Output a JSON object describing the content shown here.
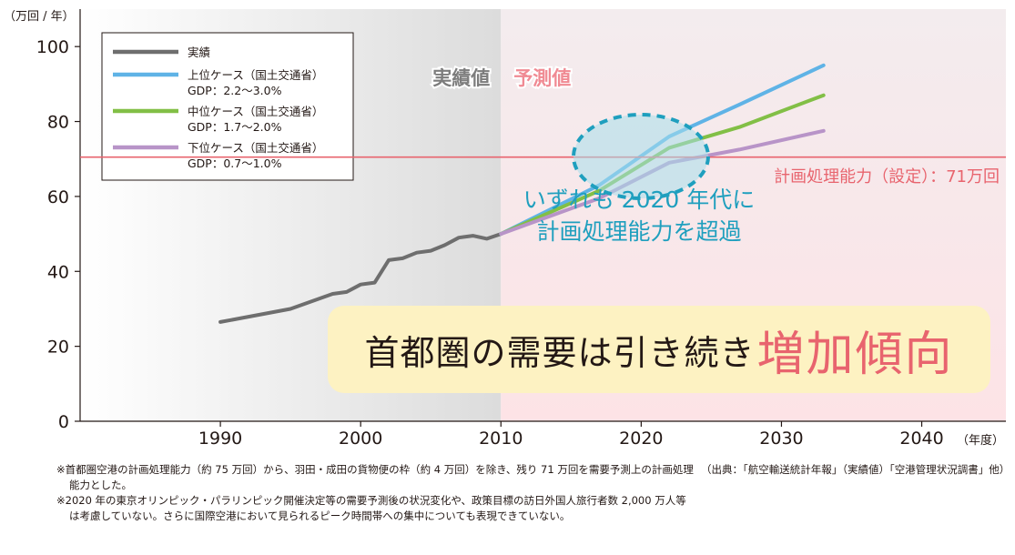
{
  "chart_data": {
    "type": "line",
    "y_unit": "（万回 / 年）",
    "x_unit": "（年度）",
    "xlim": [
      1980,
      2046
    ],
    "ylim": [
      0,
      110
    ],
    "x_ticks": [
      1990,
      2000,
      2010,
      2020,
      2030,
      2040
    ],
    "y_ticks": [
      0,
      20,
      40,
      60,
      80,
      100
    ],
    "grid": false,
    "legend_position": "top-left",
    "regions": {
      "actual_label": "実績値",
      "forecast_label": "予測値",
      "boundary_year": 2010
    },
    "series": [
      {
        "name": "実績",
        "color": "#6e6e6e",
        "x": [
          1990,
          1995,
          1998,
          1999,
          2000,
          2001,
          2002,
          2003,
          2004,
          2005,
          2006,
          2007,
          2008,
          2009,
          2010
        ],
        "values": [
          26.5,
          30,
          34,
          34.5,
          36.5,
          37,
          43,
          43.5,
          45,
          45.5,
          47,
          49,
          49.5,
          48.7,
          50
        ]
      },
      {
        "name": "上位ケース（国土交通省）",
        "detail": "GDP：2.2〜3.0%",
        "color": "#5fb3e6",
        "x": [
          2010,
          2017,
          2022,
          2027,
          2033
        ],
        "values": [
          50,
          63,
          76,
          84.5,
          95
        ]
      },
      {
        "name": "中位ケース（国土交通省）",
        "detail": "GDP：1.7〜2.0%",
        "color": "#82bf46",
        "x": [
          2010,
          2017,
          2022,
          2027,
          2033
        ],
        "values": [
          50,
          61.5,
          73,
          78.5,
          87
        ]
      },
      {
        "name": "下位ケース（国土交通省）",
        "detail": "GDP：0.7〜1.0%",
        "color": "#b894c8",
        "x": [
          2010,
          2017,
          2022,
          2027,
          2033
        ],
        "values": [
          50,
          59.5,
          69,
          72.5,
          77.5
        ]
      }
    ],
    "reference_line": {
      "value": 70.5,
      "label": "計画処理能力（設定）：71万回",
      "color": "#e8646e"
    },
    "callout": {
      "line1": "いずれも 2020 年代に",
      "line2": "計画処理能力を超過",
      "color": "#1f9fbe"
    }
  },
  "banner": {
    "main": "首都圏の需要は引き続き",
    "accent": "増加傾向"
  },
  "notes": [
    "※首都圏空港の計画処理能力（約 75 万回）から、羽田・成田の貨物便の枠（約 4 万回）を除き、残り 71 万回を需要予測上の計画処理能力とした。",
    "※2020 年の東京オリンピック・パラリンピック開催決定等の需要予測後の状況変化や、政策目標の訪日外国人旅行者数 2,000 万人等は考慮していない。さらに国際空港において見られるピーク時間帯への集中についても表現できていない。"
  ],
  "source": "（出典：「航空輸送統計年報」（実績値）「空港管理状況調書」他）"
}
